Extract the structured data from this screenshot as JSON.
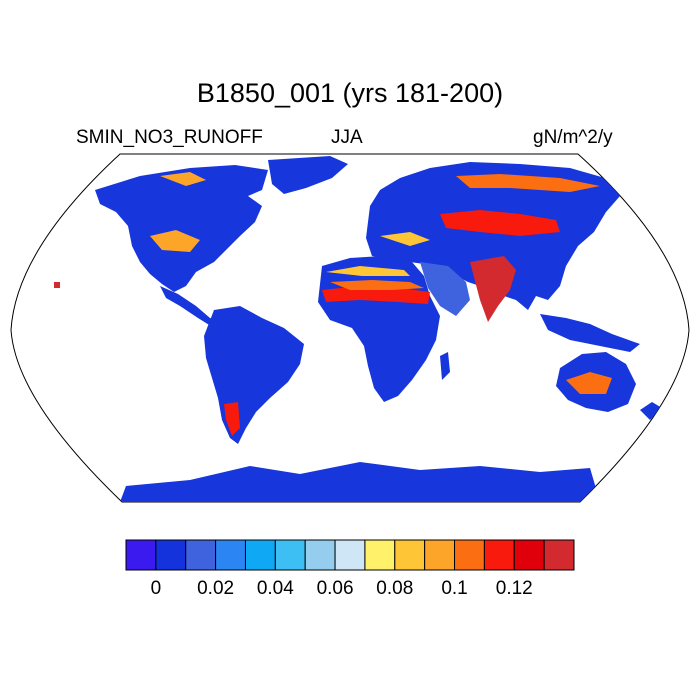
{
  "title": "B1850_001 (yrs 181-200)",
  "variable": "SMIN_NO3_RUNOFF",
  "season": "JJA",
  "units": "gN/m^2/y",
  "colorbar": {
    "colors": [
      "#3a1aef",
      "#1433dd",
      "#3f62de",
      "#2b86f3",
      "#0fa8f5",
      "#3ebff4",
      "#94cdee",
      "#cfe6f6",
      "#fff16a",
      "#fec636",
      "#fca529",
      "#fb6e12",
      "#f81a0c",
      "#e0000c",
      "#d22a2e"
    ],
    "tick_labels": [
      "0",
      "0.02",
      "0.04",
      "0.06",
      "0.08",
      "0.1",
      "0.12"
    ]
  }
}
